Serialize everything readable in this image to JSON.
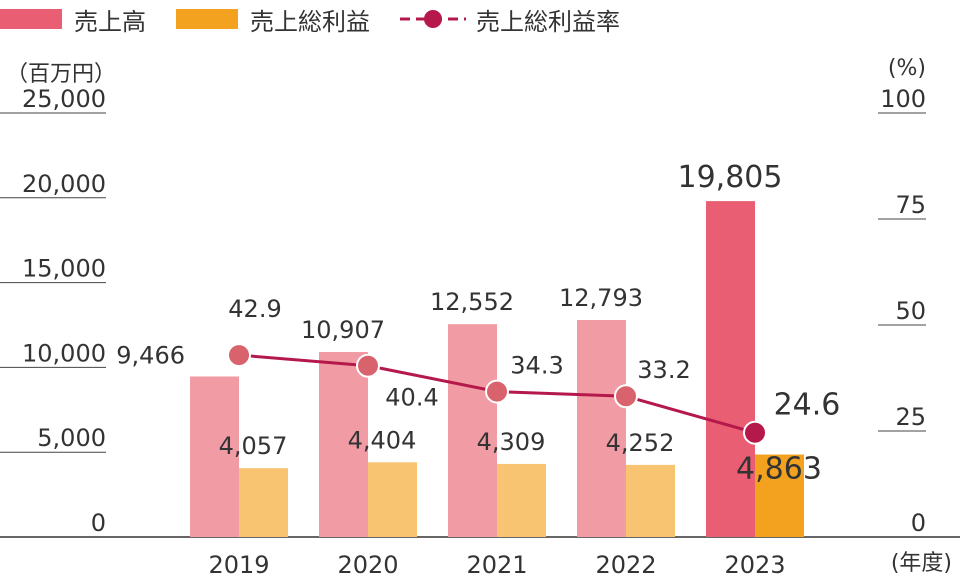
{
  "legend": {
    "sales": "売上高",
    "gross_profit": "売上総利益",
    "margin": "売上総利益率"
  },
  "units": {
    "left": "（百万円）",
    "right": "(%)",
    "year": "(年度)"
  },
  "colors": {
    "sales_past": "#f19ca4",
    "sales_latest": "#e95e73",
    "profit_past": "#f8c472",
    "profit_latest": "#f2a21e",
    "margin_line": "#b5194b",
    "margin_past_marker": "#d9636d",
    "margin_latest_marker": "#b5194b"
  },
  "chart_data": {
    "type": "bar",
    "categories": [
      "2019",
      "2020",
      "2021",
      "2022",
      "2023"
    ],
    "series": [
      {
        "name": "売上高",
        "axis": "left",
        "values": [
          9466,
          10907,
          12552,
          12793,
          19805
        ],
        "labels": [
          "9,466",
          "10,907",
          "12,552",
          "12,793",
          "19,805"
        ]
      },
      {
        "name": "売上総利益",
        "axis": "left",
        "values": [
          4057,
          4404,
          4309,
          4252,
          4863
        ],
        "labels": [
          "4,057",
          "4,404",
          "4,309",
          "4,252",
          "4,863"
        ]
      },
      {
        "name": "売上総利益率",
        "type": "line",
        "axis": "right",
        "values": [
          42.9,
          40.4,
          34.3,
          33.2,
          24.6
        ],
        "labels": [
          "42.9",
          "40.4",
          "34.3",
          "33.2",
          "24.6"
        ]
      }
    ],
    "y_left": {
      "ylim": [
        0,
        25000
      ],
      "ticks": [
        "0",
        "5,000",
        "10,000",
        "15,000",
        "20,000",
        "25,000"
      ]
    },
    "y_right": {
      "ylim": [
        0,
        100
      ],
      "ticks": [
        "0",
        "25",
        "50",
        "75",
        "100"
      ]
    },
    "legend_position": "top-left",
    "grid": false
  }
}
